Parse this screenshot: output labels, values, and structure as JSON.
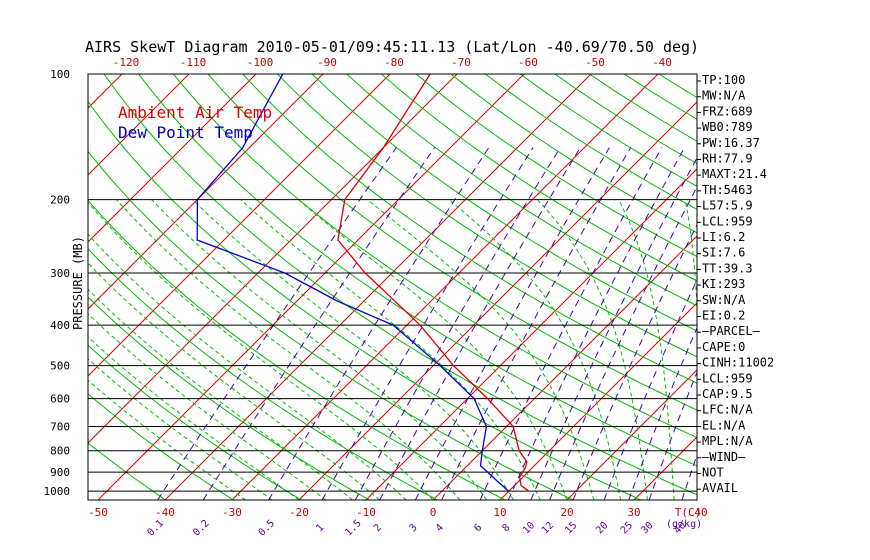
{
  "chart_data": {
    "type": "line",
    "title": "AIRS SkewT Diagram 2010-05-01/09:45:11.13 (Lat/Lon -40.69/70.50 deg)",
    "ylabel": "PRESSURE (MB)",
    "y_scale": "log-pressure",
    "ylim": [
      1050,
      100
    ],
    "xlim": [
      -50,
      50
    ],
    "y_ticks": [
      "100",
      "200",
      "300",
      "400",
      "500",
      "600",
      "700",
      "800",
      "900",
      "1000"
    ],
    "x_ticks_bottom": [
      "-50",
      "-40",
      "-30",
      "-20",
      "-10",
      "0",
      "10",
      "20",
      "30",
      "40"
    ],
    "x_ticks_top": [
      "-120",
      "-110",
      "-100",
      "-90",
      "-80",
      "-70",
      "-60",
      "-50",
      "-40"
    ],
    "x_unit_label": "T(C)",
    "mixing_ratio_labels": [
      "0.1",
      "0.2",
      "0.5",
      "1",
      "1.5",
      "2",
      "3",
      "4",
      "6",
      "8",
      "10",
      "12",
      "15",
      "20",
      "25",
      "30",
      "40"
    ],
    "mixing_ratio_unit": "(g/kg)",
    "grid": true,
    "legend_position": "top-left",
    "series": [
      {
        "name": "Ambient Air Temp",
        "color": "#dd0000",
        "points": [
          {
            "p": 1000,
            "t": 13.0
          },
          {
            "p": 970,
            "t": 11.0
          },
          {
            "p": 925,
            "t": 9.5
          },
          {
            "p": 880,
            "t": 9.0
          },
          {
            "p": 850,
            "t": 8.3
          },
          {
            "p": 800,
            "t": 5.5
          },
          {
            "p": 700,
            "t": 1.0
          },
          {
            "p": 600,
            "t": -7.0
          },
          {
            "p": 500,
            "t": -17.0
          },
          {
            "p": 400,
            "t": -28.0
          },
          {
            "p": 300,
            "t": -44.0
          },
          {
            "p": 250,
            "t": -53.0
          },
          {
            "p": 200,
            "t": -58.0
          },
          {
            "p": 150,
            "t": -60.0
          },
          {
            "p": 100,
            "t": -64.0
          }
        ]
      },
      {
        "name": "Dew Point Temp",
        "color": "#0000cc",
        "points": [
          {
            "p": 1000,
            "t": 10.0
          },
          {
            "p": 950,
            "t": 7.0
          },
          {
            "p": 900,
            "t": 4.0
          },
          {
            "p": 870,
            "t": 2.0
          },
          {
            "p": 800,
            "t": 0.0
          },
          {
            "p": 700,
            "t": -3.0
          },
          {
            "p": 600,
            "t": -9.0
          },
          {
            "p": 500,
            "t": -19.0
          },
          {
            "p": 400,
            "t": -32.0
          },
          {
            "p": 350,
            "t": -44.0
          },
          {
            "p": 300,
            "t": -56.0
          },
          {
            "p": 250,
            "t": -74.0
          },
          {
            "p": 200,
            "t": -80.0
          },
          {
            "p": 150,
            "t": -81.0
          },
          {
            "p": 100,
            "t": -86.0
          }
        ]
      }
    ],
    "side_indices": [
      "TP:100",
      "MW:N/A",
      "FRZ:689",
      "WB0:789",
      "PW:16.37",
      "RH:77.9",
      "MAXT:21.4",
      "TH:5463",
      "L57:5.9",
      "LCL:959",
      "LI:6.2",
      "SI:7.6",
      "TT:39.3",
      "KI:293",
      "SW:N/A",
      "EI:0.2",
      "—PARCEL—",
      "CAPE:0",
      "CINH:11002",
      "LCL:959",
      "CAP:9.5",
      "LFC:N/A",
      "EL:N/A",
      "MPL:N/A",
      "—WIND—",
      "NOT",
      "AVAIL"
    ],
    "colors": {
      "isotherm": "#dd0000",
      "dry_adiabat": "#00bb00",
      "moist_adiabat": "#00bb00",
      "mixing_ratio": "#4400aa",
      "axis_text_bottom": "#cc0000",
      "mix_label": "#660099",
      "frame": "#000000"
    }
  }
}
